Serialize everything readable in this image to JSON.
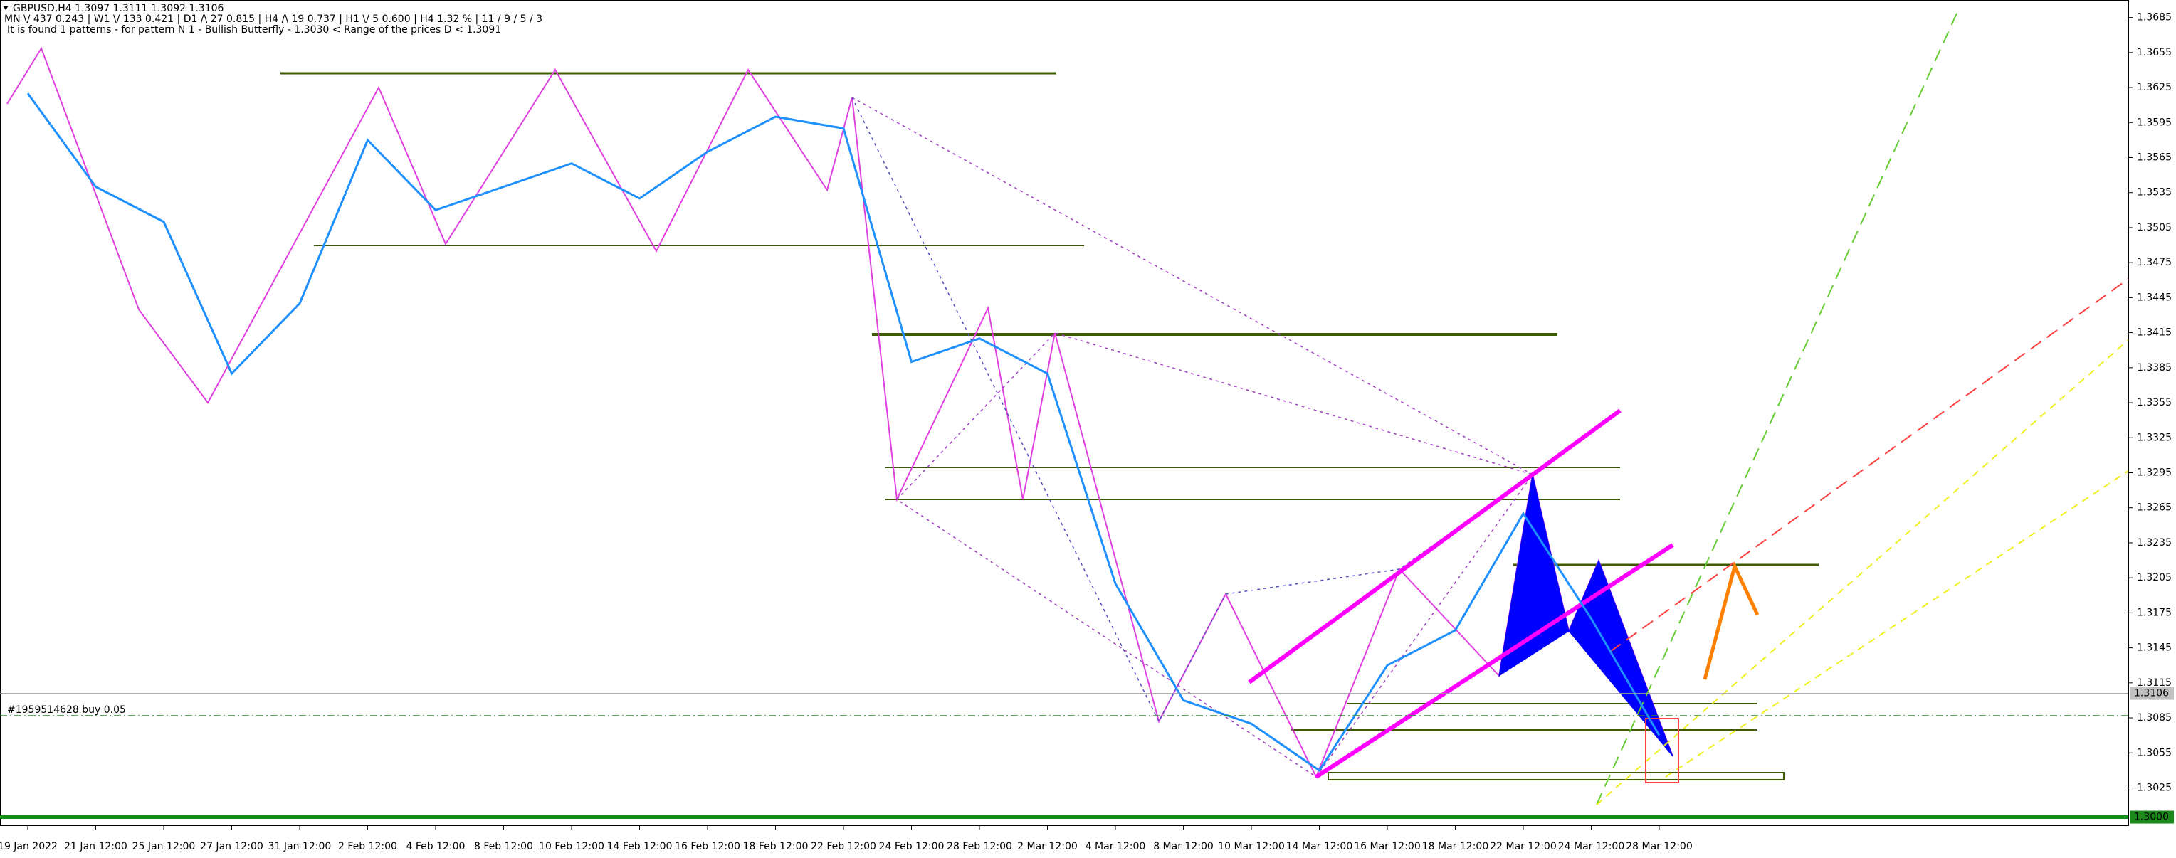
{
  "chart_data": {
    "type": "line",
    "header": [
      "GBPUSD,H4  1.3097 1.3111 1.3092 1.3106",
      "MN \\/ 437   0.243 |   W1 \\/ 133   0.421 |   D1 /\\ 27   0.815 |   H4 /\\ 19   0.737 |   H1 \\/ 5   0.600 |   H4   1.32 % |  11 / 9 / 5 / 3",
      "It is found 1 patterns  -  for pattern N 1 - Bullish Butterfly - 1.3030 < Range of the prices D < 1.3091"
    ],
    "categories": [
      "19 Jan 2022",
      "21 Jan 12:00",
      "25 Jan 12:00",
      "27 Jan 12:00",
      "31 Jan 12:00",
      "2 Feb 12:00",
      "4 Feb 12:00",
      "8 Feb 12:00",
      "10 Feb 12:00",
      "14 Feb 12:00",
      "16 Feb 12:00",
      "18 Feb 12:00",
      "22 Feb 12:00",
      "24 Feb 12:00",
      "28 Feb 12:00",
      "2 Mar 12:00",
      "4 Mar 12:00",
      "8 Mar 12:00",
      "10 Mar 12:00",
      "14 Mar 12:00",
      "16 Mar 12:00",
      "18 Mar 12:00",
      "22 Mar 12:00",
      "24 Mar 12:00",
      "28 Mar 12:00"
    ],
    "values": [
      1.362,
      1.354,
      1.351,
      1.338,
      1.344,
      1.358,
      1.352,
      1.354,
      1.356,
      1.353,
      1.357,
      1.36,
      1.359,
      1.339,
      1.341,
      1.338,
      1.32,
      1.31,
      1.308,
      1.304,
      1.313,
      1.316,
      1.326,
      1.317,
      1.307
    ],
    "color": "#1e90ff",
    "ylim": [
      1.2993,
      1.37
    ],
    "yticks": [
      1.3685,
      1.3655,
      1.3625,
      1.3595,
      1.3565,
      1.3535,
      1.3505,
      1.3475,
      1.3445,
      1.3415,
      1.3385,
      1.3355,
      1.3325,
      1.3295,
      1.3265,
      1.3235,
      1.3205,
      1.3175,
      1.3145,
      1.3115,
      1.3085,
      1.3055,
      1.3025
    ],
    "bid": 1.3106,
    "support": {
      "value": 1.3,
      "label": "1.3000"
    },
    "order": {
      "label": "#1959514628 buy 0.05",
      "value": 1.3087
    }
  }
}
